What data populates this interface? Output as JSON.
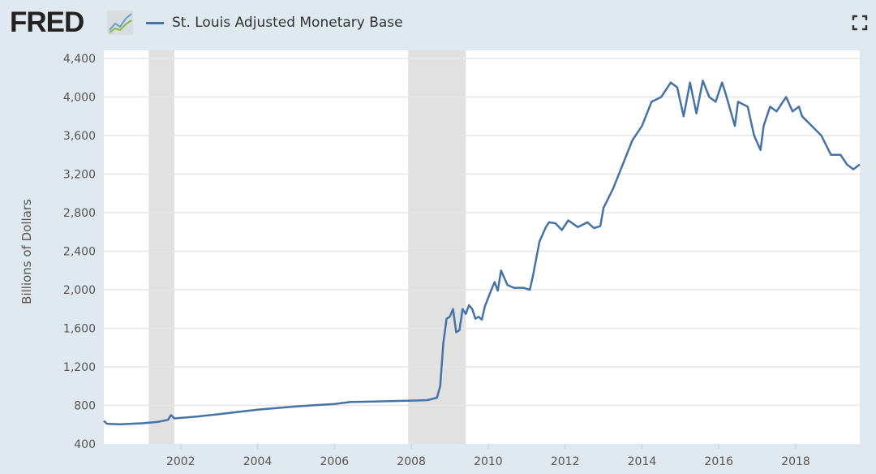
{
  "header": {
    "logo": "FRED",
    "fullscreen_icon": "fullscreen-icon"
  },
  "colors": {
    "series": "#4572a7",
    "recession": "#e1e1e1",
    "background": "#e1e9f0"
  },
  "chart_data": {
    "type": "line",
    "title": "",
    "ylabel": "Billions of Dollars",
    "xlabel": "",
    "ylim": [
      400,
      4400
    ],
    "xlim": [
      "2000-01",
      "2019-09"
    ],
    "yticks": [
      "400",
      "800",
      "1,200",
      "1,600",
      "2,000",
      "2,400",
      "2,800",
      "3,200",
      "3,600",
      "4,000",
      "4,400"
    ],
    "xticks": [
      "2002",
      "2004",
      "2006",
      "2008",
      "2010",
      "2012",
      "2014",
      "2016",
      "2018"
    ],
    "grid": true,
    "legend": "top-left",
    "recessions": [
      [
        "2001-03",
        "2001-11"
      ],
      [
        "2007-12",
        "2009-06"
      ]
    ],
    "series": [
      {
        "name": "St. Louis Adjusted Monetary Base",
        "x": [
          "2000-01",
          "2000-02",
          "2000-06",
          "2001-01",
          "2001-06",
          "2001-09",
          "2001-10",
          "2001-11",
          "2002-06",
          "2003-01",
          "2004-01",
          "2005-01",
          "2006-01",
          "2006-06",
          "2007-01",
          "2008-01",
          "2008-06",
          "2008-09",
          "2008-10",
          "2008-11",
          "2008-12",
          "2009-01",
          "2009-02",
          "2009-03",
          "2009-04",
          "2009-05",
          "2009-06",
          "2009-07",
          "2009-08",
          "2009-09",
          "2009-10",
          "2009-11",
          "2009-12",
          "2010-02",
          "2010-03",
          "2010-04",
          "2010-05",
          "2010-07",
          "2010-09",
          "2010-12",
          "2011-02",
          "2011-03",
          "2011-05",
          "2011-07",
          "2011-08",
          "2011-10",
          "2011-12",
          "2012-02",
          "2012-05",
          "2012-08",
          "2012-10",
          "2012-12",
          "2013-01",
          "2013-04",
          "2013-07",
          "2013-10",
          "2014-01",
          "2014-04",
          "2014-07",
          "2014-10",
          "2014-12",
          "2015-02",
          "2015-04",
          "2015-06",
          "2015-08",
          "2015-10",
          "2015-12",
          "2016-02",
          "2016-03",
          "2016-06",
          "2016-07",
          "2016-10",
          "2016-12",
          "2017-02",
          "2017-03",
          "2017-05",
          "2017-07",
          "2017-10",
          "2017-12",
          "2018-02",
          "2018-03",
          "2018-06",
          "2018-09",
          "2018-12",
          "2019-03",
          "2019-05",
          "2019-07",
          "2019-09"
        ],
        "values": [
          640,
          610,
          605,
          615,
          630,
          650,
          700,
          665,
          685,
          710,
          755,
          790,
          815,
          835,
          840,
          850,
          855,
          880,
          1000,
          1450,
          1700,
          1720,
          1800,
          1560,
          1580,
          1800,
          1750,
          1840,
          1800,
          1700,
          1720,
          1690,
          1830,
          2000,
          2080,
          1990,
          2200,
          2050,
          2020,
          2020,
          2000,
          2150,
          2500,
          2650,
          2700,
          2690,
          2620,
          2720,
          2650,
          2700,
          2640,
          2660,
          2850,
          3050,
          3300,
          3550,
          3700,
          3950,
          4000,
          4150,
          4100,
          3800,
          4150,
          3830,
          4170,
          4000,
          3950,
          4150,
          4050,
          3700,
          3950,
          3900,
          3600,
          3450,
          3700,
          3900,
          3850,
          4000,
          3850,
          3900,
          3800,
          3700,
          3600,
          3400,
          3400,
          3300,
          3250,
          3300
        ]
      }
    ]
  }
}
